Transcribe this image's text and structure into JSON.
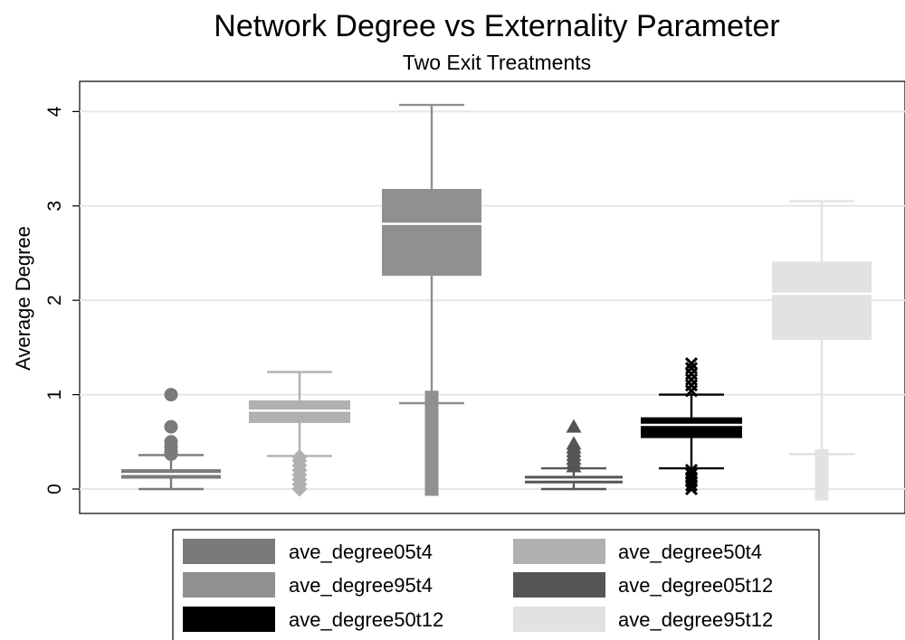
{
  "chart_data": {
    "type": "box",
    "title": "Network Degree vs Externality Parameter",
    "subtitle": "Two Exit Treatments",
    "ylabel": "Average Degree",
    "xlabel": "",
    "ylim": [
      -0.25,
      4.3
    ],
    "yticks": [
      0,
      1,
      2,
      3,
      4
    ],
    "grid": true,
    "legend_position": "bottom",
    "series": [
      {
        "name": "ave_degree05t4",
        "color": "#7a7a7a",
        "marker": "circle",
        "whisker_low": 0.0,
        "q1": 0.11,
        "median": 0.16,
        "q3": 0.21,
        "whisker_high": 0.36,
        "outliers": [
          0.37,
          0.4,
          0.45,
          0.5,
          0.66,
          1.0
        ]
      },
      {
        "name": "ave_degree50t4",
        "color": "#b0b0b0",
        "marker": "diamond",
        "whisker_low": 0.35,
        "q1": 0.7,
        "median": 0.83,
        "q3": 0.94,
        "whisker_high": 1.24,
        "outliers": [
          0.0,
          0.05,
          0.1,
          0.15,
          0.2,
          0.25,
          0.3,
          0.34
        ]
      },
      {
        "name": "ave_degree95t4",
        "color": "#909090",
        "marker": "square",
        "whisker_low": 0.91,
        "q1": 2.26,
        "median": 2.81,
        "q3": 3.18,
        "whisker_high": 4.07,
        "outliers": [
          0.0,
          0.05,
          0.1,
          0.2,
          0.3,
          0.4,
          0.5,
          0.6,
          0.7,
          0.8,
          0.9,
          0.97
        ]
      },
      {
        "name": "ave_degree05t12",
        "color": "#555555",
        "marker": "triangle",
        "whisker_low": 0.0,
        "q1": 0.06,
        "median": 0.1,
        "q3": 0.14,
        "whisker_high": 0.22,
        "outliers": [
          0.24,
          0.28,
          0.32,
          0.36,
          0.4,
          0.44,
          0.48,
          0.66
        ]
      },
      {
        "name": "ave_degree50t12",
        "color": "#000000",
        "marker": "x",
        "whisker_low": 0.22,
        "q1": 0.54,
        "median": 0.68,
        "q3": 0.76,
        "whisker_high": 1.0,
        "outliers": [
          0.0,
          0.04,
          0.08,
          0.12,
          0.16,
          0.2,
          1.04,
          1.1,
          1.16,
          1.22,
          1.28,
          1.33
        ]
      },
      {
        "name": "ave_degree95t12",
        "color": "#e2e2e2",
        "marker": "square",
        "whisker_low": 0.37,
        "q1": 1.58,
        "median": 2.07,
        "q3": 2.41,
        "whisker_high": 3.05,
        "outliers": [
          -0.05,
          0.0,
          0.1,
          0.15,
          0.2,
          0.25,
          0.3,
          0.35
        ]
      }
    ]
  }
}
